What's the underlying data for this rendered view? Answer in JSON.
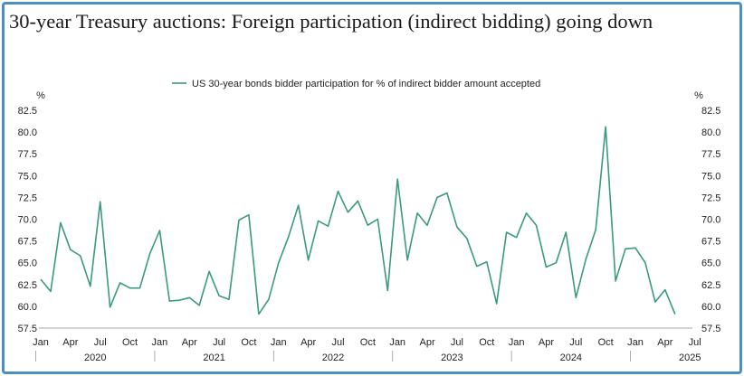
{
  "chart_data": {
    "type": "line",
    "title": "30-year Treasury auctions: Foreign participation (indirect bidding) going down",
    "left_unit": "%",
    "right_unit": "%",
    "ylim": [
      57.5,
      82.5
    ],
    "yticks": [
      "57.5",
      "60.0",
      "62.5",
      "65.0",
      "67.5",
      "70.0",
      "72.5",
      "75.0",
      "77.5",
      "80.0",
      "82.5"
    ],
    "x_month_labels": [
      "Jan",
      "Apr",
      "Jul",
      "Oct",
      "Jan",
      "Apr",
      "Jul",
      "Oct",
      "Jan",
      "Apr",
      "Jul",
      "Oct",
      "Jan",
      "Apr",
      "Jul",
      "Oct",
      "Jan",
      "Apr",
      "Jul",
      "Oct",
      "Jan",
      "Apr",
      "Jul"
    ],
    "x_year_labels": [
      "2020",
      "2021",
      "2022",
      "2023",
      "2024",
      "2025"
    ],
    "legend_position": "top-center",
    "line_color": "#3a9a80",
    "series": [
      {
        "name": "US 30-year bonds bidder participation for % of indirect bidder amount accepted",
        "x": [
          "2020-01",
          "2020-02",
          "2020-03",
          "2020-04",
          "2020-05",
          "2020-06",
          "2020-07",
          "2020-08",
          "2020-09",
          "2020-10",
          "2020-11",
          "2020-12",
          "2021-01",
          "2021-02",
          "2021-03",
          "2021-04",
          "2021-05",
          "2021-06",
          "2021-07",
          "2021-08",
          "2021-09",
          "2021-10",
          "2021-11",
          "2021-12",
          "2022-01",
          "2022-02",
          "2022-03",
          "2022-04",
          "2022-05",
          "2022-06",
          "2022-07",
          "2022-08",
          "2022-09",
          "2022-10",
          "2022-11",
          "2022-12",
          "2023-01",
          "2023-02",
          "2023-03",
          "2023-04",
          "2023-05",
          "2023-06",
          "2023-07",
          "2023-08",
          "2023-09",
          "2023-10",
          "2023-11",
          "2023-12",
          "2024-01",
          "2024-02",
          "2024-03",
          "2024-04",
          "2024-05",
          "2024-06",
          "2024-07",
          "2024-08",
          "2024-09",
          "2024-10",
          "2024-11",
          "2024-12",
          "2025-01",
          "2025-02",
          "2025-03",
          "2025-04",
          "2025-05"
        ],
        "values": [
          63.1,
          61.7,
          69.6,
          66.5,
          65.8,
          62.3,
          72.0,
          59.9,
          62.7,
          62.1,
          62.1,
          66.0,
          68.7,
          60.6,
          60.7,
          61.0,
          60.1,
          64.0,
          61.2,
          60.8,
          69.9,
          70.5,
          59.1,
          60.8,
          65.0,
          68.0,
          71.6,
          65.3,
          69.8,
          69.2,
          73.2,
          70.8,
          72.1,
          69.3,
          70.0,
          61.8,
          74.6,
          65.3,
          70.7,
          69.3,
          72.5,
          73.0,
          69.1,
          67.8,
          64.6,
          65.1,
          60.3,
          68.5,
          67.9,
          70.7,
          69.3,
          64.5,
          65.0,
          68.5,
          61.0,
          65.4,
          68.8,
          80.6,
          62.9,
          66.6,
          66.7,
          65.0,
          60.5,
          61.9,
          59.1
        ]
      }
    ]
  }
}
